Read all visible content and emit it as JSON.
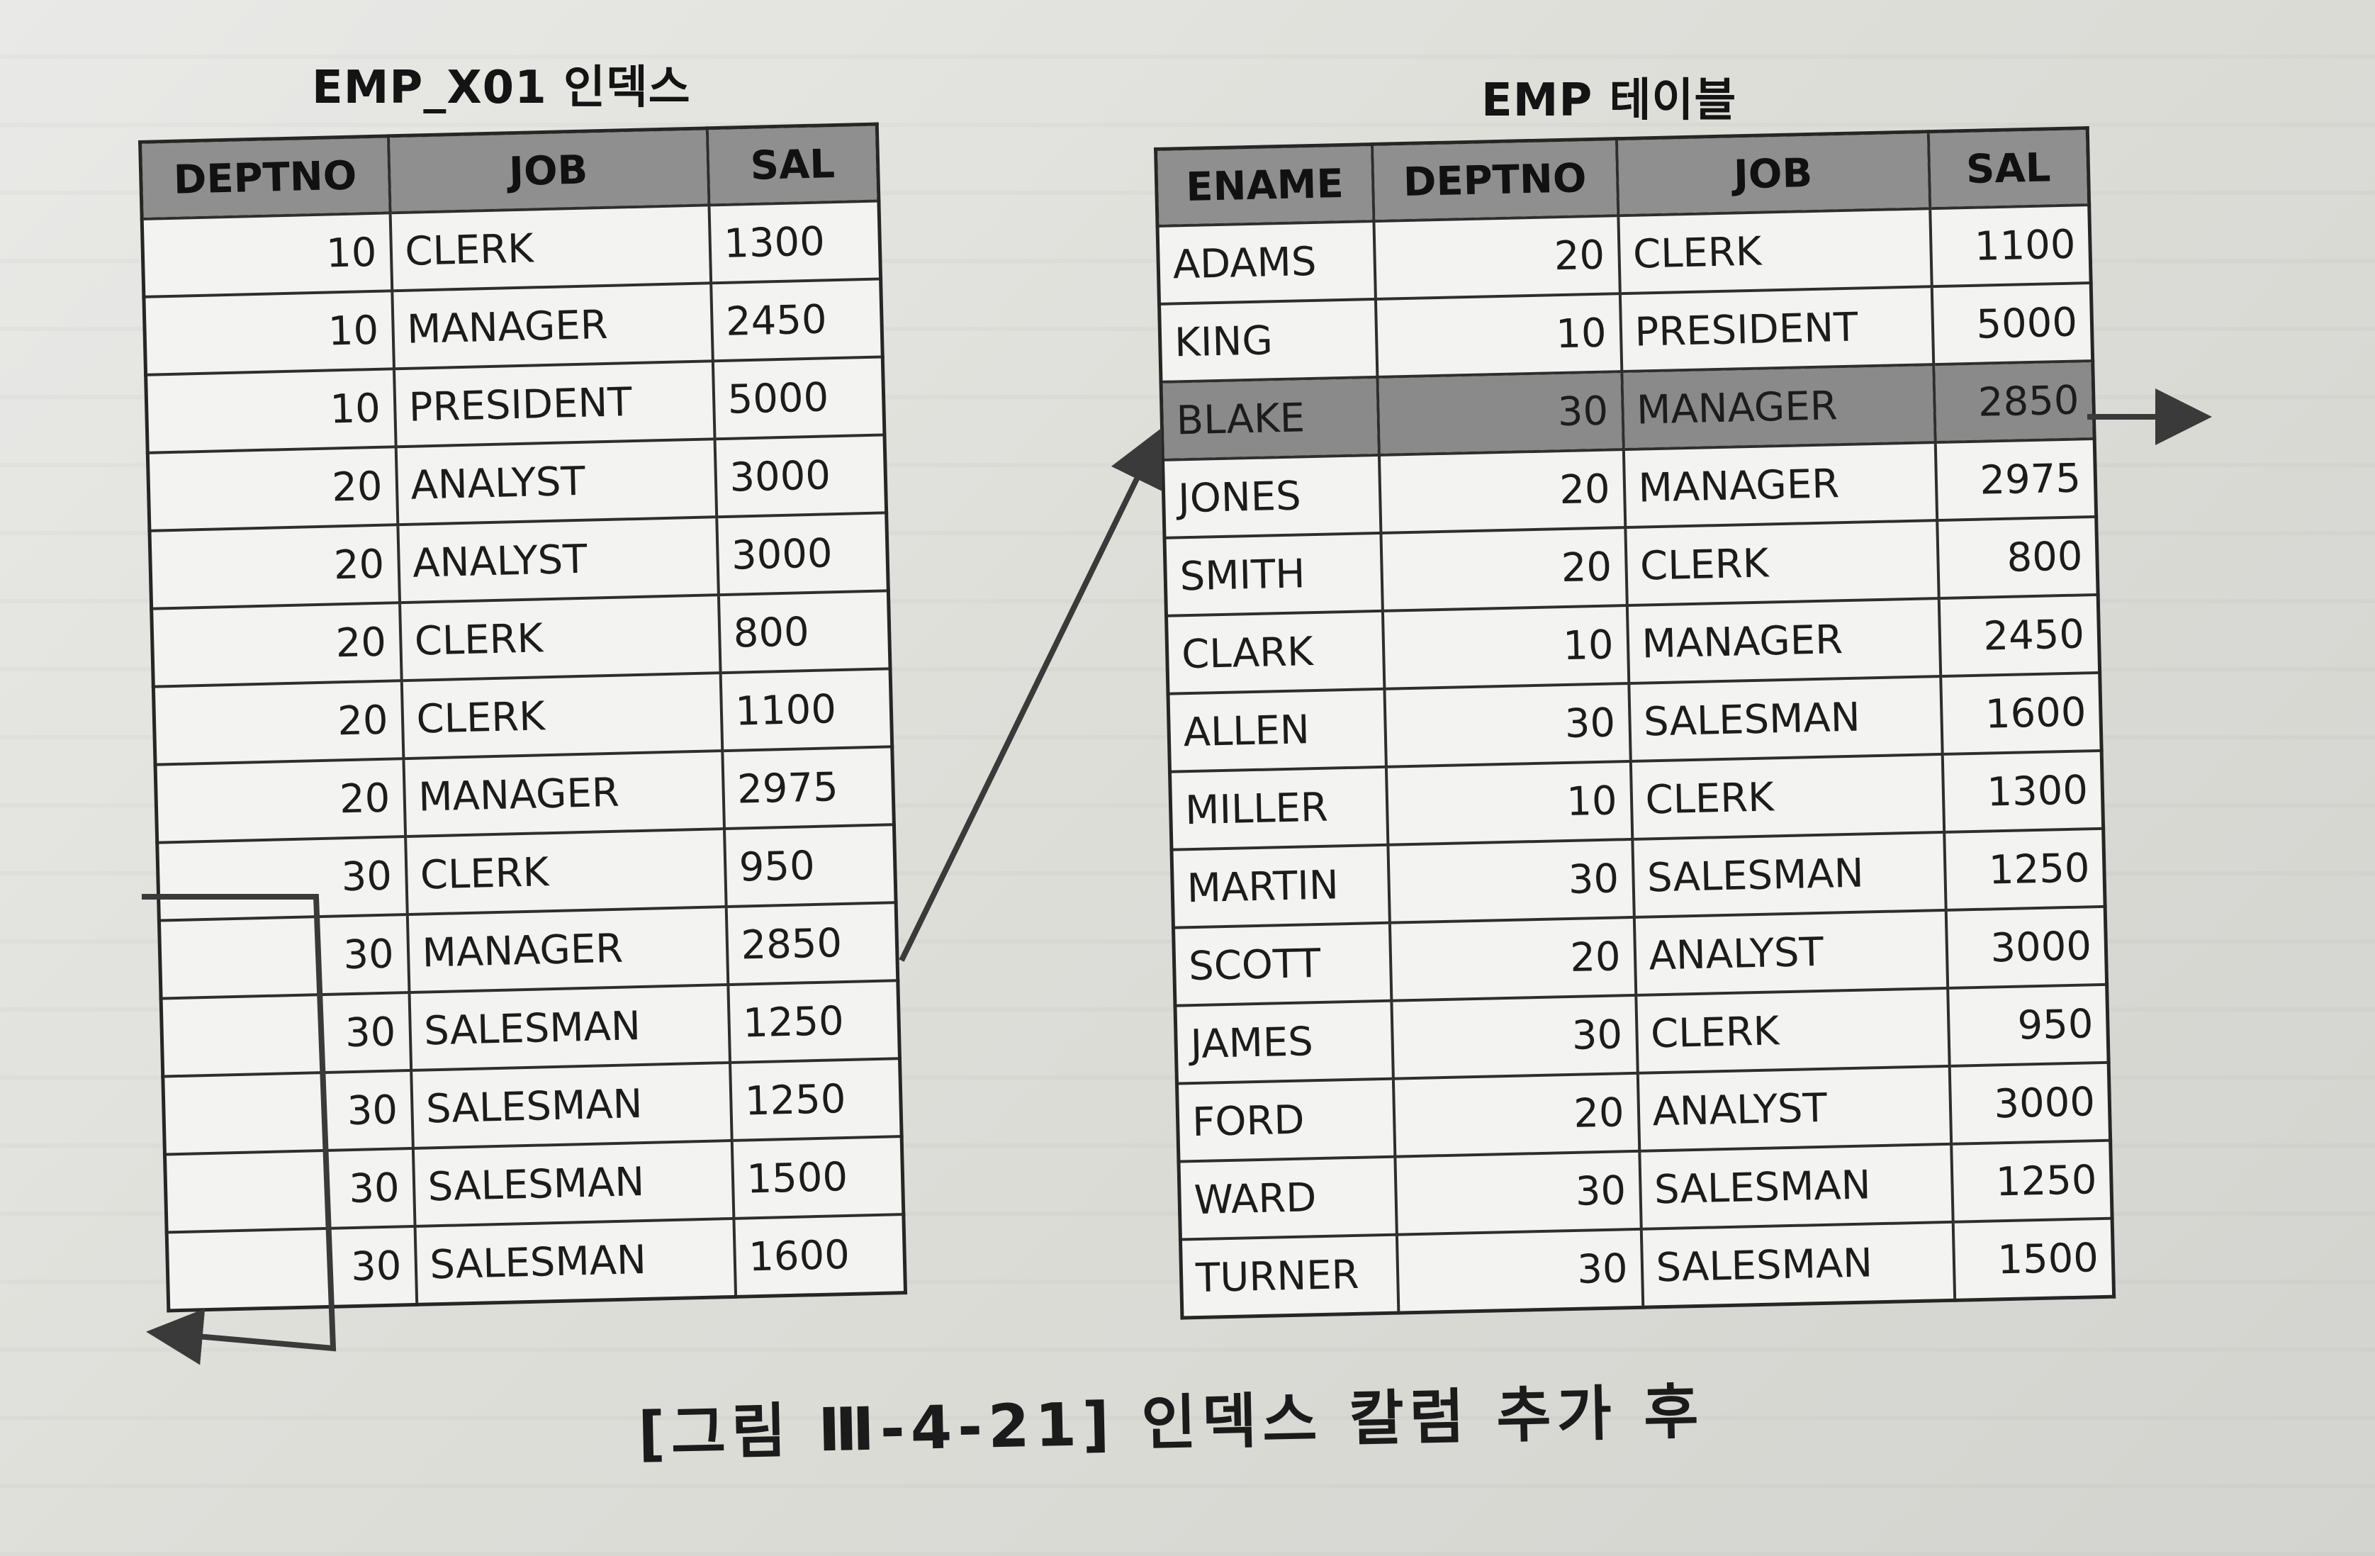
{
  "index_table": {
    "title": "EMP_X01 인덱스",
    "columns": [
      "DEPTNO",
      "JOB",
      "SAL"
    ],
    "rows": [
      [
        "10",
        "CLERK",
        "1300"
      ],
      [
        "10",
        "MANAGER",
        "2450"
      ],
      [
        "10",
        "PRESIDENT",
        "5000"
      ],
      [
        "20",
        "ANALYST",
        "3000"
      ],
      [
        "20",
        "ANALYST",
        "3000"
      ],
      [
        "20",
        "CLERK",
        "800"
      ],
      [
        "20",
        "CLERK",
        "1100"
      ],
      [
        "20",
        "MANAGER",
        "2975"
      ],
      [
        "30",
        "CLERK",
        "950"
      ],
      [
        "30",
        "MANAGER",
        "2850"
      ],
      [
        "30",
        "SALESMAN",
        "1250"
      ],
      [
        "30",
        "SALESMAN",
        "1250"
      ],
      [
        "30",
        "SALESMAN",
        "1500"
      ],
      [
        "30",
        "SALESMAN",
        "1600"
      ]
    ]
  },
  "emp_table": {
    "title": "EMP 테이블",
    "columns": [
      "ENAME",
      "DEPTNO",
      "JOB",
      "SAL"
    ],
    "highlight_row": 2,
    "rows": [
      [
        "ADAMS",
        "20",
        "CLERK",
        "1100"
      ],
      [
        "KING",
        "10",
        "PRESIDENT",
        "5000"
      ],
      [
        "BLAKE",
        "30",
        "MANAGER",
        "2850"
      ],
      [
        "JONES",
        "20",
        "MANAGER",
        "2975"
      ],
      [
        "SMITH",
        "20",
        "CLERK",
        "800"
      ],
      [
        "CLARK",
        "10",
        "MANAGER",
        "2450"
      ],
      [
        "ALLEN",
        "30",
        "SALESMAN",
        "1600"
      ],
      [
        "MILLER",
        "10",
        "CLERK",
        "1300"
      ],
      [
        "MARTIN",
        "30",
        "SALESMAN",
        "1250"
      ],
      [
        "SCOTT",
        "20",
        "ANALYST",
        "3000"
      ],
      [
        "JAMES",
        "30",
        "CLERK",
        "950"
      ],
      [
        "FORD",
        "20",
        "ANALYST",
        "3000"
      ],
      [
        "WARD",
        "30",
        "SALESMAN",
        "1250"
      ],
      [
        "TURNER",
        "30",
        "SALESMAN",
        "1500"
      ]
    ]
  },
  "caption": "[그림 Ⅲ-4-21] 인덱스 칼럼 추가 후",
  "colors": {
    "header_bg": "#8f8f8f",
    "highlight_bg": "#8a8a8a",
    "arrow": "#3a3a3a"
  }
}
